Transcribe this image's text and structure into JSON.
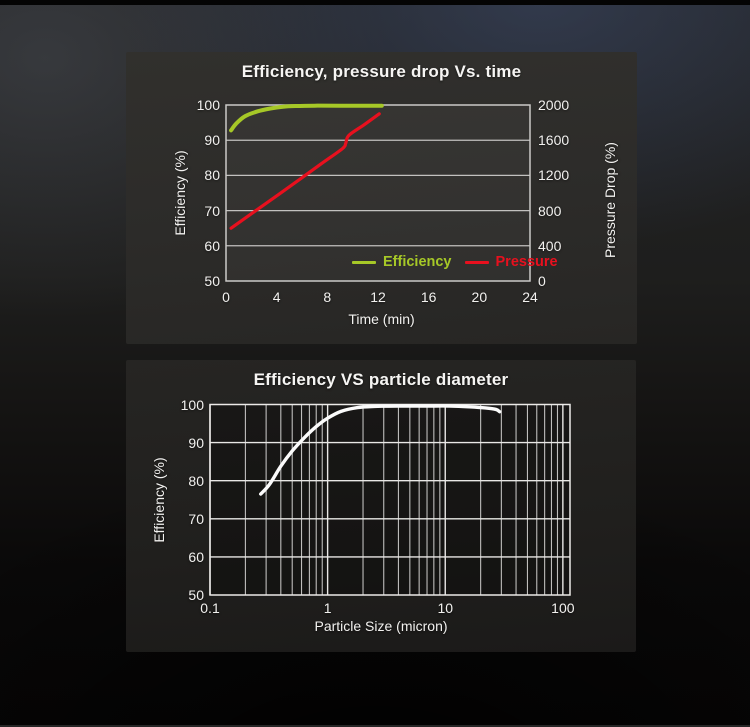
{
  "chart_data": [
    {
      "type": "line",
      "title": "Efficiency, pressure drop Vs. time",
      "xlabel": "Time (min)",
      "ylabel_left": "Efficiency (%)",
      "ylabel_right": "Pressure Drop (%)",
      "xlim": [
        0,
        24
      ],
      "ylim_left": [
        50,
        100
      ],
      "ylim_right": [
        0,
        2000
      ],
      "x_ticks": [
        0,
        4,
        8,
        12,
        16,
        20,
        24
      ],
      "y_ticks_left": [
        50,
        60,
        70,
        80,
        90,
        100
      ],
      "y_ticks_right": [
        0,
        400,
        800,
        1200,
        1600,
        2000
      ],
      "grid": "horizontal",
      "legend_position": "inside-bottom-right",
      "legend": [
        {
          "name": "Efficiency",
          "color": "#a6c827"
        },
        {
          "name": "Pressure",
          "color": "#e8101e"
        }
      ],
      "series": [
        {
          "name": "Efficiency",
          "axis": "left",
          "color": "#a6c827",
          "points": [
            [
              0.4,
              92.8
            ],
            [
              0.8,
              94.7
            ],
            [
              1.5,
              96.8
            ],
            [
              2.5,
              98.2
            ],
            [
              3.5,
              99.0
            ],
            [
              4.5,
              99.5
            ],
            [
              5.5,
              99.7
            ],
            [
              7,
              99.8
            ],
            [
              9,
              99.8
            ],
            [
              12.3,
              99.8
            ]
          ]
        },
        {
          "name": "Pressure",
          "axis": "right",
          "color": "#e8101e",
          "points": [
            [
              0.4,
              600
            ],
            [
              2.5,
              815
            ],
            [
              5,
              1070
            ],
            [
              7.5,
              1330
            ],
            [
              9.2,
              1505
            ],
            [
              9.45,
              1565
            ],
            [
              9.7,
              1655
            ],
            [
              10.9,
              1775
            ],
            [
              12.1,
              1900
            ]
          ]
        }
      ]
    },
    {
      "type": "line",
      "title": "Efficiency VS particle diameter",
      "xlabel": "Particle Size (micron)",
      "ylabel_left": "Efficiency (%)",
      "x_scale": "log",
      "xlim": [
        0.1,
        115
      ],
      "ylim_left": [
        50,
        100
      ],
      "x_ticks": [
        0.1,
        1,
        10,
        100
      ],
      "y_ticks_left": [
        50,
        60,
        70,
        80,
        90,
        100
      ],
      "grid": "both",
      "series": [
        {
          "name": "Efficiency",
          "axis": "left",
          "color": "#fbfbfb",
          "points": [
            [
              0.27,
              76.5
            ],
            [
              0.32,
              79
            ],
            [
              0.4,
              83.8
            ],
            [
              0.5,
              87.8
            ],
            [
              0.63,
              91.2
            ],
            [
              0.8,
              94.2
            ],
            [
              1,
              96.4
            ],
            [
              1.3,
              98.2
            ],
            [
              1.8,
              99.2
            ],
            [
              2.5,
              99.5
            ],
            [
              4,
              99.6
            ],
            [
              7,
              99.6
            ],
            [
              11,
              99.6
            ],
            [
              16,
              99.4
            ],
            [
              22,
              99.1
            ],
            [
              27,
              98.7
            ],
            [
              29,
              98.1
            ]
          ]
        }
      ]
    }
  ]
}
